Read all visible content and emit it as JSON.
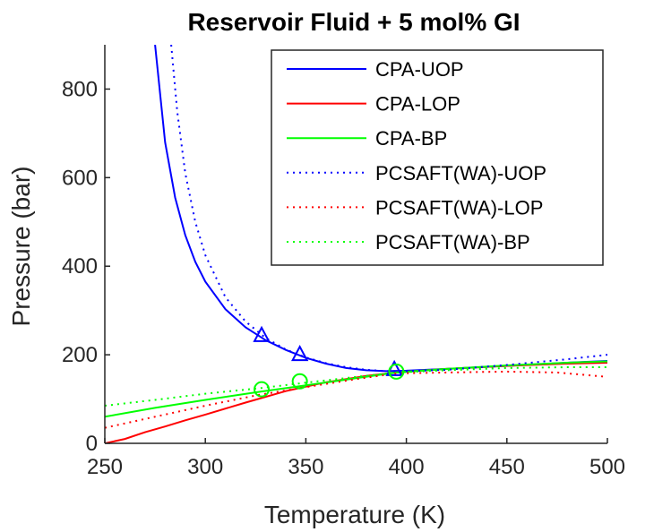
{
  "chart_data": {
    "type": "line",
    "title": "Reservoir Fluid +  5 mol% GI",
    "xlabel": "Temperature (K)",
    "ylabel": "Pressure (bar)",
    "xlim": [
      250,
      500
    ],
    "ylim": [
      0,
      900
    ],
    "xticks": [
      "250",
      "300",
      "350",
      "400",
      "450",
      "500"
    ],
    "yticks": [
      "0",
      "200",
      "400",
      "600",
      "800"
    ],
    "grid": false,
    "legend_position": "top-right",
    "series": [
      {
        "name": "CPA-UOP",
        "color": "#0000ff",
        "style": "solid",
        "x": [
          275,
          280,
          285,
          290,
          295,
          300,
          310,
          320,
          330,
          340,
          350,
          360,
          370,
          380,
          390,
          400,
          420,
          450,
          480,
          500
        ],
        "y": [
          900,
          680,
          555,
          470,
          410,
          365,
          303,
          262,
          233,
          211,
          193,
          180,
          170,
          165,
          163,
          164,
          168,
          175,
          182,
          186
        ]
      },
      {
        "name": "CPA-LOP",
        "color": "#ff0000",
        "style": "solid",
        "x": [
          250,
          260,
          270,
          280,
          290,
          300,
          320,
          340,
          360,
          380,
          395,
          420,
          450,
          480,
          500
        ],
        "y": [
          0,
          10,
          25,
          38,
          52,
          65,
          92,
          118,
          138,
          152,
          160,
          168,
          175,
          180,
          182
        ]
      },
      {
        "name": "CPA-BP",
        "color": "#00ff00",
        "style": "solid",
        "x": [
          250,
          275,
          300,
          328,
          350,
          375,
          395,
          420,
          450,
          480,
          500
        ],
        "y": [
          60,
          80,
          98,
          117,
          131,
          147,
          160,
          168,
          176,
          182,
          185
        ]
      },
      {
        "name": "PCSAFT(WA)-UOP",
        "color": "#0000ff",
        "style": "dotted",
        "x": [
          283,
          286,
          290,
          295,
          300,
          310,
          320,
          330,
          340,
          350,
          360,
          370,
          380,
          390,
          400,
          420,
          450,
          480,
          500
        ],
        "y": [
          900,
          750,
          610,
          500,
          425,
          330,
          275,
          238,
          212,
          194,
          181,
          172,
          166,
          163,
          163,
          166,
          177,
          190,
          200
        ]
      },
      {
        "name": "PCSAFT(WA)-LOP",
        "color": "#ff0000",
        "style": "dotted",
        "x": [
          250,
          275,
          300,
          325,
          350,
          375,
          395,
          420,
          450,
          475,
          500
        ],
        "y": [
          35,
          60,
          85,
          108,
          127,
          145,
          158,
          160,
          162,
          160,
          150
        ]
      },
      {
        "name": "PCSAFT(WA)-BP",
        "color": "#00ff00",
        "style": "dotted",
        "x": [
          250,
          275,
          300,
          328,
          350,
          375,
          395,
          420,
          450,
          480,
          500
        ],
        "y": [
          85,
          98,
          112,
          125,
          137,
          150,
          160,
          165,
          170,
          172,
          172
        ]
      }
    ],
    "markers": [
      {
        "shape": "triangle",
        "color": "#0000ff",
        "x": 328,
        "y": 243
      },
      {
        "shape": "triangle",
        "color": "#0000ff",
        "x": 347,
        "y": 200
      },
      {
        "shape": "triangle",
        "color": "#0000ff",
        "x": 394,
        "y": 166
      },
      {
        "shape": "circle",
        "color": "#00ff00",
        "x": 328,
        "y": 122
      },
      {
        "shape": "circle",
        "color": "#00ff00",
        "x": 347,
        "y": 140
      },
      {
        "shape": "circle",
        "color": "#00ff00",
        "x": 395,
        "y": 162
      }
    ]
  }
}
